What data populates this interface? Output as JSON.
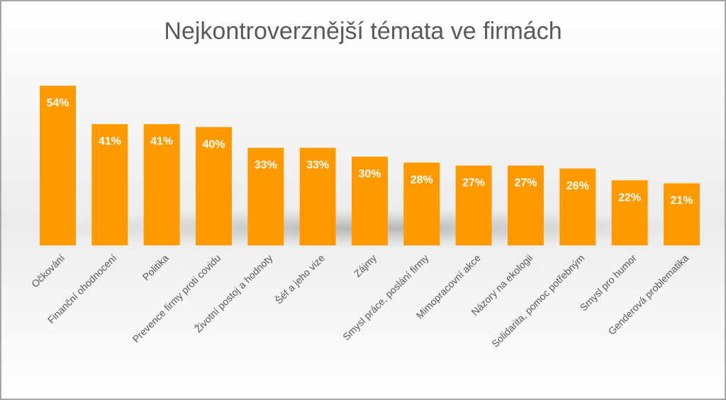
{
  "chart_data": {
    "type": "bar",
    "title": "Nejkontroverznější témata ve firmách",
    "categories": [
      "Očkování",
      "Finanční ohodnocení",
      "Politika",
      "Prevence firmy proti covidu",
      "Životní postoj a hodnoty",
      "Šéf a jeho vize",
      "Zájmy",
      "Smysl práce, poslání firmy",
      "Mimopracovní akce",
      "Názory na ekologii",
      "Solidarita, pomoc potřebným",
      "Smysl pro humor",
      "Genderová problematika"
    ],
    "values": [
      54,
      41,
      41,
      40,
      33,
      33,
      30,
      28,
      27,
      27,
      26,
      22,
      21
    ],
    "value_labels": [
      "54%",
      "41%",
      "41%",
      "40%",
      "33%",
      "33%",
      "30%",
      "28%",
      "27%",
      "27%",
      "26%",
      "22%",
      "21%"
    ],
    "color": "#ff9900"
  }
}
